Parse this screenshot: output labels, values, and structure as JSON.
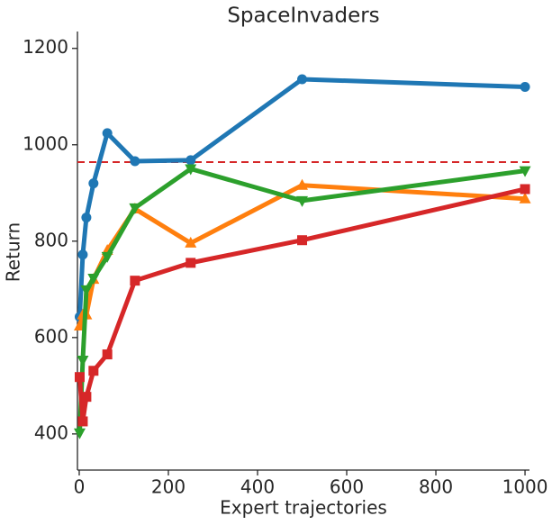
{
  "chart_data": {
    "type": "line",
    "title": "SpaceInvaders",
    "x_label": "Expert trajectories",
    "y_label": "Return",
    "x": [
      1,
      8,
      16,
      32,
      63,
      125,
      250,
      500,
      1000
    ],
    "series": [
      {
        "color": "#1f77b4",
        "marker": "circle",
        "values": [
          643,
          772,
          849,
          920,
          1024,
          966,
          968,
          1136,
          1120
        ]
      },
      {
        "color": "#ff7f0e",
        "marker": "triangle-up",
        "values": [
          624,
          647,
          647,
          721,
          781,
          867,
          796,
          916,
          888
        ]
      },
      {
        "color": "#2ca02c",
        "marker": "triangle-down",
        "values": [
          402,
          553,
          699,
          723,
          768,
          869,
          950,
          884,
          946
        ]
      },
      {
        "color": "#d62728",
        "marker": "square",
        "values": [
          518,
          426,
          477,
          531,
          565,
          718,
          755,
          802,
          908
        ]
      }
    ],
    "reference_line": {
      "value": 964,
      "color": "#d62728"
    },
    "xlim": [
      -4,
      1010
    ],
    "ylim": [
      325,
      1235
    ],
    "xticks": [
      0,
      200,
      400,
      600,
      800,
      1000
    ],
    "yticks": [
      400,
      600,
      800,
      1000,
      1200
    ]
  }
}
